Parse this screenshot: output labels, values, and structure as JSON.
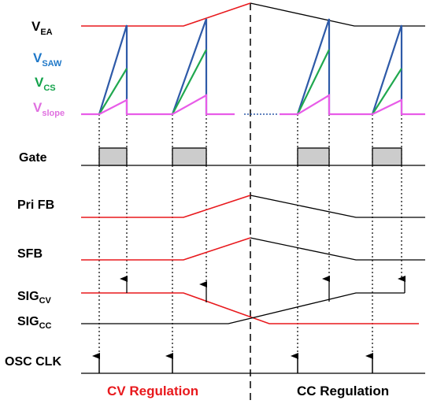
{
  "labels": {
    "vea_main": "V",
    "vea_sub": "EA",
    "vsaw_main": "V",
    "vsaw_sub": "SAW",
    "vcs_main": "V",
    "vcs_sub": "CS",
    "vslope_main": "V",
    "vslope_sub": "slope",
    "gate": "Gate",
    "prifb": "Pri FB",
    "sfb": "SFB",
    "sigcv_main": "SIG",
    "sigcv_sub": "CV",
    "sigcc_main": "SIG",
    "sigcc_sub": "CC",
    "oscclk": "OSC CLK"
  },
  "regions": {
    "cv": "CV Regulation",
    "cc": "CC Regulation"
  },
  "colors": {
    "red": "#e8191d",
    "blue": "#2e5aa8",
    "green": "#20a84f",
    "magenta": "#e85ce8",
    "black": "#000000",
    "gate_fill": "#cccccc",
    "saw_label": "#1f78c8",
    "cs_label": "#12a24a",
    "slope_label": "#e070e0",
    "region_cv": "#e8191d"
  }
}
